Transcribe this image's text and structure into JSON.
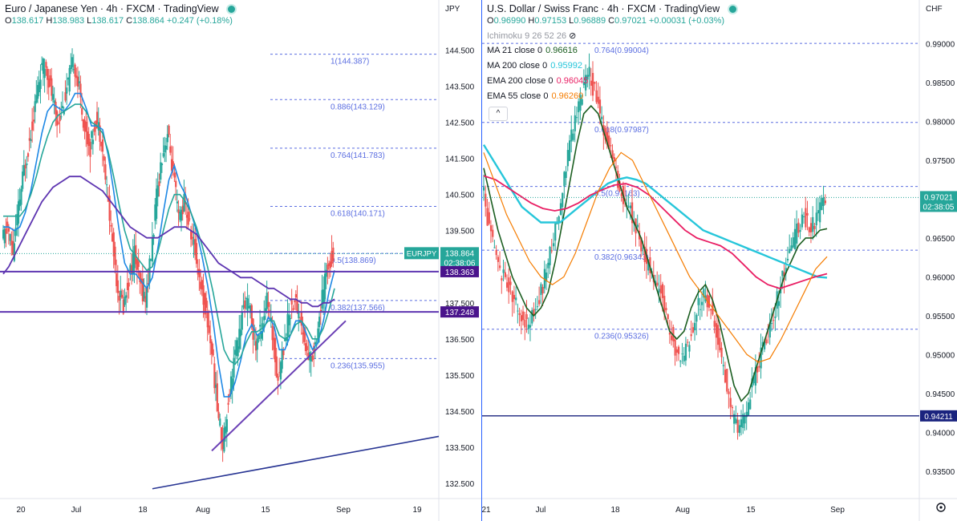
{
  "left_chart": {
    "symbol": "Euro / Japanese Yen",
    "interval": "4h",
    "broker": "FXCM",
    "platform": "TradingView",
    "ohlc": {
      "o_label": "O",
      "o": "138.617",
      "h_label": "H",
      "h": "138.983",
      "l_label": "L",
      "l": "138.617",
      "c_label": "C",
      "c": "138.864",
      "change": "+0.247 (+0.18%)"
    },
    "currency": "JPY",
    "price_badge": {
      "ticker": "EURJPY",
      "price": "138.864",
      "countdown": "02:38:06"
    },
    "level_badges": [
      {
        "price": "138.363"
      },
      {
        "price": "137.248"
      }
    ]
  },
  "right_chart": {
    "symbol": "U.S. Dollar / Swiss Franc",
    "interval": "4h",
    "broker": "FXCM",
    "platform": "TradingView",
    "ohlc": {
      "o_label": "O",
      "o": "0.96990",
      "h_label": "H",
      "h": "0.97153",
      "l_label": "L",
      "l": "0.96889",
      "c_label": "C",
      "c": "0.97021",
      "change": "+0.00031 (+0.03%)"
    },
    "currency": "CHF",
    "indicators": [
      {
        "label": "Ichimoku 9 26 52 26",
        "value": "",
        "color": "#9598a1"
      },
      {
        "label": "MA 21 close 0",
        "value": "0.96616",
        "color": "#1b5e20"
      },
      {
        "label": "MA 200 close 0",
        "value": "0.95992",
        "color": "#26c6da"
      },
      {
        "label": "EMA 200 close 0",
        "value": "0.96045",
        "color": "#e91e63"
      },
      {
        "label": "EMA 55 close 0",
        "value": "0.96260",
        "color": "#f57c00"
      }
    ],
    "price_badge": {
      "price": "0.97021",
      "countdown": "02:38:05"
    },
    "level_badges": [
      {
        "price": "0.94211"
      }
    ],
    "collapse_symbol": "^"
  },
  "colors": {
    "up": "#26a69a",
    "down": "#ef5350",
    "fib": "#5b6ee1",
    "trend": "#6a1b9a",
    "level": "#4a148c",
    "axis_text": "#131722",
    "accent": "#2962ff"
  },
  "chart_data": [
    {
      "type": "candlestick",
      "title": "Euro / Japanese Yen, 4h, FXCM",
      "ylim": [
        132.3,
        145.0
      ],
      "y_ticks": [
        "144.500",
        "143.500",
        "142.500",
        "141.500",
        "140.500",
        "139.500",
        "138.500",
        "137.500",
        "136.500",
        "135.500",
        "134.500",
        "133.500",
        "132.500"
      ],
      "x_ticks": [
        "20",
        "Jul",
        "18",
        "Aug",
        "15",
        "Sep",
        "19"
      ],
      "fib_levels": [
        {
          "label": "1(144.387)",
          "value": 144.387
        },
        {
          "label": "0.886(143.129)",
          "value": 143.129
        },
        {
          "label": "0.764(141.783)",
          "value": 141.783
        },
        {
          "label": "0.618(140.171)",
          "value": 140.171
        },
        {
          "label": "0.5(138.869)",
          "value": 138.869
        },
        {
          "label": "0.382(137.566)",
          "value": 137.566
        },
        {
          "label": "0.236(135.955)",
          "value": 135.955
        }
      ],
      "horizontal_levels": [
        138.363,
        137.248
      ],
      "last_price": 138.864,
      "series": [
        {
          "name": "close",
          "values": [
            139.2,
            139.6,
            138.9,
            140.1,
            141.2,
            142.0,
            143.0,
            143.9,
            144.1,
            143.3,
            142.5,
            142.9,
            143.6,
            144.2,
            143.4,
            142.3,
            141.8,
            142.6,
            142.1,
            140.6,
            139.2,
            137.9,
            137.4,
            138.2,
            138.9,
            138.0,
            137.6,
            138.8,
            140.4,
            141.6,
            142.2,
            141.1,
            139.8,
            140.3,
            139.6,
            138.9,
            138.0,
            137.2,
            136.2,
            134.6,
            133.6,
            134.8,
            135.9,
            136.6,
            137.6,
            137.2,
            136.3,
            136.9,
            137.6,
            136.6,
            135.4,
            136.3,
            137.2,
            137.6,
            137.1,
            136.2,
            135.9,
            136.6,
            137.6,
            138.6,
            138.86
          ]
        },
        {
          "name": "MA fast",
          "values": [
            139.6,
            139.6,
            139.5,
            139.6,
            140.0,
            140.6,
            141.4,
            142.2,
            142.8,
            143.0,
            142.9,
            142.8,
            143.0,
            143.3,
            143.3,
            142.9,
            142.4,
            142.4,
            142.3,
            141.6,
            140.6,
            139.5,
            138.6,
            138.3,
            138.3,
            138.1,
            137.9,
            138.2,
            139.0,
            140.0,
            140.9,
            141.3,
            140.8,
            140.5,
            140.0,
            139.5,
            138.8,
            138.0,
            137.0,
            135.8,
            134.9,
            134.9,
            135.3,
            135.9,
            136.6,
            136.9,
            136.6,
            136.7,
            137.1,
            136.9,
            136.2,
            136.2,
            136.6,
            137.0,
            137.0,
            136.6,
            136.2,
            136.4,
            137.0,
            137.8,
            138.4
          ]
        },
        {
          "name": "MA mid",
          "values": [
            139.9,
            139.9,
            139.9,
            139.9,
            140.1,
            140.5,
            141.0,
            141.6,
            142.1,
            142.5,
            142.7,
            142.8,
            142.9,
            143.0,
            143.0,
            142.8,
            142.5,
            142.4,
            142.2,
            141.7,
            141.0,
            140.2,
            139.5,
            139.0,
            138.8,
            138.6,
            138.4,
            138.5,
            138.9,
            139.5,
            140.1,
            140.5,
            140.5,
            140.3,
            140.0,
            139.6,
            139.1,
            138.5,
            137.8,
            137.0,
            136.2,
            135.9,
            135.8,
            136.0,
            136.4,
            136.7,
            136.7,
            136.8,
            137.0,
            137.0,
            136.6,
            136.5,
            136.6,
            136.9,
            137.0,
            136.8,
            136.5,
            136.5,
            136.8,
            137.3,
            137.9
          ]
        },
        {
          "name": "MA slow",
          "values": [
            138.3,
            138.5,
            138.8,
            139.1,
            139.4,
            139.7,
            140.0,
            140.3,
            140.5,
            140.7,
            140.8,
            140.9,
            141.0,
            141.0,
            141.0,
            140.9,
            140.8,
            140.7,
            140.6,
            140.4,
            140.2,
            140.0,
            139.8,
            139.6,
            139.5,
            139.4,
            139.3,
            139.3,
            139.3,
            139.4,
            139.5,
            139.6,
            139.6,
            139.6,
            139.5,
            139.4,
            139.2,
            139.0,
            138.8,
            138.6,
            138.5,
            138.4,
            138.3,
            138.2,
            138.2,
            138.2,
            138.1,
            138.0,
            137.9,
            137.9,
            137.8,
            137.7,
            137.6,
            137.6,
            137.5,
            137.5,
            137.4,
            137.4,
            137.5,
            137.5,
            137.6
          ]
        }
      ],
      "trendlines": [
        {
          "name": "support",
          "from": [
            133.4
          ],
          "to": [
            137.0
          ]
        },
        {
          "name": "long support",
          "from": [
            132.3
          ],
          "to": [
            133.8
          ]
        }
      ]
    },
    {
      "type": "candlestick",
      "title": "U.S. Dollar / Swiss Franc, 4h, FXCM",
      "ylim": [
        0.9325,
        0.9915
      ],
      "y_ticks": [
        "0.99000",
        "0.98500",
        "0.98000",
        "0.97500",
        "0.97000",
        "0.96500",
        "0.96000",
        "0.95500",
        "0.95000",
        "0.94500",
        "0.94000",
        "0.93500"
      ],
      "x_ticks": [
        "21",
        "Jul",
        "18",
        "Aug",
        "15",
        "Sep"
      ],
      "fib_levels": [
        {
          "label": "0.764(0.99004)",
          "value": 0.99004
        },
        {
          "label": "0.618(0.97987)",
          "value": 0.97987
        },
        {
          "label": "0.5(0.97163)",
          "value": 0.97163
        },
        {
          "label": "0.382(0.96343)",
          "value": 0.96343
        },
        {
          "label": "0.236(0.95326)",
          "value": 0.95326
        }
      ],
      "horizontal_levels": [
        0.94211
      ],
      "last_price": 0.97021,
      "series": [
        {
          "name": "close",
          "values": [
            0.972,
            0.966,
            0.962,
            0.96,
            0.958,
            0.956,
            0.954,
            0.955,
            0.957,
            0.961,
            0.965,
            0.97,
            0.976,
            0.98,
            0.984,
            0.986,
            0.983,
            0.979,
            0.976,
            0.972,
            0.97,
            0.968,
            0.965,
            0.962,
            0.96,
            0.958,
            0.954,
            0.951,
            0.949,
            0.952,
            0.956,
            0.958,
            0.956,
            0.952,
            0.947,
            0.942,
            0.94,
            0.943,
            0.947,
            0.95,
            0.953,
            0.956,
            0.96,
            0.963,
            0.966,
            0.968,
            0.966,
            0.968,
            0.97
          ]
        },
        {
          "name": "MA 21 close 0",
          "values": [
            0.974,
            0.97,
            0.966,
            0.963,
            0.96,
            0.958,
            0.956,
            0.955,
            0.956,
            0.958,
            0.962,
            0.967,
            0.972,
            0.977,
            0.981,
            0.982,
            0.981,
            0.978,
            0.975,
            0.972,
            0.969,
            0.967,
            0.965,
            0.962,
            0.959,
            0.956,
            0.953,
            0.952,
            0.953,
            0.956,
            0.958,
            0.959,
            0.957,
            0.954,
            0.95,
            0.946,
            0.944,
            0.945,
            0.948,
            0.951,
            0.954,
            0.957,
            0.96,
            0.962,
            0.964,
            0.965,
            0.965,
            0.966,
            0.9662
          ]
        },
        {
          "name": "MA 200 close 0",
          "values": [
            0.977,
            0.975,
            0.973,
            0.971,
            0.969,
            0.968,
            0.967,
            0.967,
            0.967,
            0.968,
            0.969,
            0.97,
            0.971,
            0.972,
            0.9725,
            0.9728,
            0.9725,
            0.972,
            0.971,
            0.97,
            0.969,
            0.968,
            0.967,
            0.966,
            0.9655,
            0.965,
            0.9645,
            0.964,
            0.9635,
            0.963,
            0.9625,
            0.962,
            0.9615,
            0.961,
            0.9605,
            0.96,
            0.9599
          ]
        },
        {
          "name": "EMA 200 close 0",
          "values": [
            0.973,
            0.9725,
            0.9715,
            0.9705,
            0.9695,
            0.9688,
            0.9685,
            0.9688,
            0.9695,
            0.9705,
            0.9712,
            0.9718,
            0.972,
            0.9715,
            0.9705,
            0.969,
            0.9675,
            0.966,
            0.965,
            0.9645,
            0.964,
            0.963,
            0.9615,
            0.96,
            0.959,
            0.9585,
            0.959,
            0.9595,
            0.96,
            0.9604
          ]
        },
        {
          "name": "EMA 55 close 0",
          "values": [
            0.976,
            0.972,
            0.968,
            0.965,
            0.962,
            0.96,
            0.959,
            0.96,
            0.963,
            0.967,
            0.971,
            0.974,
            0.976,
            0.975,
            0.972,
            0.969,
            0.966,
            0.963,
            0.96,
            0.958,
            0.956,
            0.954,
            0.952,
            0.95,
            0.949,
            0.9495,
            0.952,
            0.955,
            0.958,
            0.961,
            0.9626
          ]
        }
      ]
    }
  ]
}
